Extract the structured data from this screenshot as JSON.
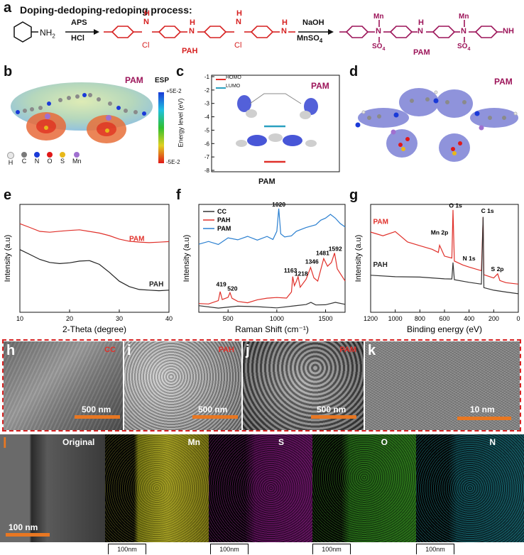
{
  "panels": {
    "a": "a",
    "b": "b",
    "c": "c",
    "d": "d",
    "e": "e",
    "f": "f",
    "g": "g",
    "h": "h",
    "i": "i",
    "j": "j",
    "k": "k",
    "l": "l"
  },
  "panel_a": {
    "title": "Doping-dedoping-redoping process:",
    "reactant": "NH",
    "reactant_sub": "2",
    "step1_top": "APS",
    "step1_bottom": "HCl",
    "step2_top": "NaOH",
    "step2_bottom": "MnSO",
    "step2_bottom_sub": "4",
    "pah_label": "PAH",
    "pam_label": "PAM",
    "atom_H": "H",
    "atom_N": "N",
    "atom_Cl": "Cl",
    "atom_Mn": "Mn",
    "atom_SO4": "SO",
    "sub4": "4",
    "atom_NH": "NH"
  },
  "panel_b": {
    "tag": "PAM",
    "esp_title": "ESP",
    "esp_max": "+5E-2",
    "esp_min": "-5E-2",
    "legend": [
      {
        "label": "H",
        "color": "#e8e8e8"
      },
      {
        "label": "C",
        "color": "#7a7a7a"
      },
      {
        "label": "N",
        "color": "#1a3ad8"
      },
      {
        "label": "O",
        "color": "#e01818"
      },
      {
        "label": "S",
        "color": "#e8b81a"
      },
      {
        "label": "Mn",
        "color": "#a070d0"
      }
    ]
  },
  "panel_c": {
    "tag": "PAM",
    "xlabel": "PAM",
    "ylabel": "Energy level (eV)",
    "ticks": [
      "-1",
      "-2",
      "-3",
      "-4",
      "-5",
      "-6",
      "-7",
      "-8"
    ],
    "legend_homo": "HOMO",
    "legend_lumo": "LUMO"
  },
  "panel_d": {
    "tag": "PAM"
  },
  "chart_data": [
    {
      "id": "e",
      "type": "line",
      "xlabel": "2-Theta (degree)",
      "ylabel": "Intensity (a.u)",
      "xlim": [
        10,
        40
      ],
      "xticks": [
        "10",
        "20",
        "30",
        "40"
      ],
      "series": [
        {
          "name": "PAM",
          "color": "#e0302a",
          "x": [
            10,
            12,
            14,
            16,
            18,
            20,
            22,
            24,
            26,
            28,
            30,
            32,
            34,
            36,
            38,
            40
          ],
          "y": [
            0.82,
            0.78,
            0.74,
            0.73,
            0.74,
            0.75,
            0.76,
            0.75,
            0.74,
            0.72,
            0.69,
            0.67,
            0.66,
            0.65,
            0.65,
            0.65
          ]
        },
        {
          "name": "PAH",
          "color": "#222222",
          "x": [
            10,
            12,
            14,
            16,
            18,
            20,
            22,
            24,
            26,
            28,
            30,
            32,
            34,
            36,
            38,
            40
          ],
          "y": [
            0.58,
            0.53,
            0.48,
            0.45,
            0.44,
            0.45,
            0.47,
            0.48,
            0.45,
            0.38,
            0.3,
            0.25,
            0.22,
            0.21,
            0.2,
            0.2
          ]
        }
      ]
    },
    {
      "id": "f",
      "type": "line",
      "xlabel": "Raman Shift (cm⁻¹)",
      "ylabel": "Intensity (a.u)",
      "xlim": [
        200,
        1700
      ],
      "xticks": [
        "500",
        "1000",
        "1500"
      ],
      "legend": [
        "CC",
        "PAH",
        "PAM"
      ],
      "annotations": [
        "1020",
        "419",
        "520",
        "1163",
        "1218",
        "1346",
        "1481",
        "1592"
      ],
      "series": [
        {
          "name": "CC",
          "color": "#333333",
          "x": [
            200,
            400,
            600,
            800,
            1000,
            1200,
            1300,
            1350,
            1400,
            1500,
            1600,
            1700
          ],
          "y": [
            0.05,
            0.05,
            0.05,
            0.05,
            0.05,
            0.05,
            0.07,
            0.1,
            0.08,
            0.07,
            0.08,
            0.07
          ]
        },
        {
          "name": "PAH",
          "color": "#e0302a",
          "x": [
            200,
            300,
            400,
            419,
            440,
            500,
            520,
            540,
            600,
            700,
            800,
            900,
            1000,
            1100,
            1150,
            1163,
            1180,
            1200,
            1218,
            1240,
            1300,
            1346,
            1380,
            1420,
            1481,
            1520,
            1560,
            1592,
            1620,
            1700
          ],
          "y": [
            0.07,
            0.08,
            0.12,
            0.2,
            0.12,
            0.13,
            0.17,
            0.12,
            0.1,
            0.1,
            0.12,
            0.12,
            0.13,
            0.14,
            0.2,
            0.34,
            0.25,
            0.28,
            0.32,
            0.22,
            0.3,
            0.42,
            0.33,
            0.3,
            0.5,
            0.42,
            0.45,
            0.54,
            0.4,
            0.3
          ]
        },
        {
          "name": "PAM",
          "color": "#2a7fd0",
          "x": [
            200,
            300,
            400,
            500,
            600,
            700,
            800,
            900,
            960,
            1000,
            1020,
            1040,
            1080,
            1150,
            1200,
            1300,
            1400,
            1450,
            1500,
            1550,
            1600,
            1650,
            1700
          ],
          "y": [
            0.62,
            0.66,
            0.64,
            0.69,
            0.66,
            0.7,
            0.68,
            0.71,
            0.67,
            0.74,
            0.95,
            0.72,
            0.7,
            0.72,
            0.76,
            0.78,
            0.8,
            0.85,
            0.88,
            0.92,
            0.88,
            0.82,
            0.78
          ]
        }
      ]
    },
    {
      "id": "g",
      "type": "line",
      "xlabel": "Binding energy (eV)",
      "ylabel": "Intensity (a.u)",
      "xlim": [
        1200,
        0
      ],
      "xticks": [
        "1200",
        "1000",
        "800",
        "600",
        "400",
        "200",
        "0"
      ],
      "annotations": [
        "O 1s",
        "Mn 2p",
        "C 1s",
        "N 1s",
        "S 2p"
      ],
      "series": [
        {
          "name": "PAM",
          "color": "#e0302a",
          "x": [
            1200,
            1100,
            1000,
            900,
            800,
            700,
            650,
            640,
            600,
            540,
            531,
            520,
            450,
            400,
            300,
            286,
            280,
            250,
            200,
            168,
            150,
            100,
            0
          ],
          "y": [
            0.75,
            0.72,
            0.76,
            0.66,
            0.62,
            0.58,
            0.55,
            0.62,
            0.52,
            0.5,
            0.95,
            0.48,
            0.44,
            0.42,
            0.38,
            0.88,
            0.35,
            0.34,
            0.32,
            0.36,
            0.3,
            0.28,
            0.26
          ]
        },
        {
          "name": "PAH",
          "color": "#333333",
          "x": [
            1200,
            1000,
            800,
            600,
            540,
            531,
            520,
            400,
            300,
            286,
            280,
            200,
            100,
            0
          ],
          "y": [
            0.35,
            0.34,
            0.32,
            0.3,
            0.3,
            0.45,
            0.29,
            0.27,
            0.26,
            0.88,
            0.22,
            0.2,
            0.19,
            0.18
          ]
        }
      ]
    }
  ],
  "sem": [
    {
      "tag": "CC",
      "scale": "500 nm"
    },
    {
      "tag": "PAH",
      "scale": "500 nm"
    },
    {
      "tag": "PAM",
      "scale": "500 nm"
    },
    {
      "tag": "",
      "scale": "10 nm"
    }
  ],
  "eds": [
    {
      "label": "Original",
      "color": "#bbbbbb"
    },
    {
      "label": "Mn",
      "color": "#c8c21a"
    },
    {
      "label": "S",
      "color": "#b020a0"
    },
    {
      "label": "O",
      "color": "#30b020"
    },
    {
      "label": "N",
      "color": "#30b0c0"
    }
  ],
  "eds_scale": "100 nm",
  "eds_small_scale": "100nm"
}
